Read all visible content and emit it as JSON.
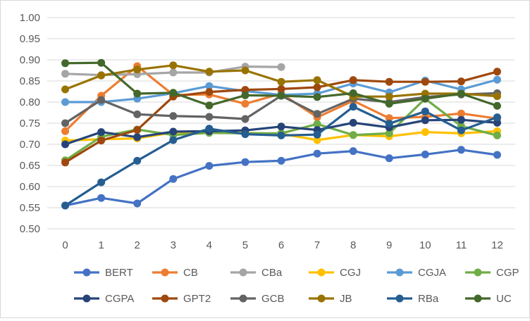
{
  "chart_data": {
    "type": "line",
    "title": "",
    "xlabel": "",
    "ylabel": "",
    "x": [
      0,
      1,
      2,
      3,
      4,
      5,
      6,
      7,
      8,
      9,
      10,
      11,
      12
    ],
    "ylim": [
      0.5,
      1.0
    ],
    "yticks": [
      "0.50",
      "0.55",
      "0.60",
      "0.65",
      "0.70",
      "0.75",
      "0.80",
      "0.85",
      "0.90",
      "0.95",
      "1.00"
    ],
    "xticks": [
      "0",
      "1",
      "2",
      "3",
      "4",
      "5",
      "6",
      "7",
      "8",
      "9",
      "10",
      "11",
      "12"
    ],
    "grid": true,
    "legend_position": "bottom",
    "series": [
      {
        "name": "BERT",
        "color": "#4472C4",
        "values": [
          0.555,
          0.573,
          0.56,
          0.618,
          0.649,
          0.658,
          0.661,
          0.678,
          0.684,
          0.667,
          0.676,
          0.687,
          0.675
        ]
      },
      {
        "name": "CB",
        "color": "#ED7D31",
        "values": [
          0.731,
          0.815,
          0.885,
          0.817,
          0.818,
          0.796,
          0.82,
          0.764,
          0.803,
          0.762,
          0.765,
          0.773,
          0.761
        ]
      },
      {
        "name": "CBa",
        "color": "#A5A5A5",
        "values": [
          0.867,
          0.864,
          0.866,
          0.87,
          0.87,
          0.884,
          0.883,
          null,
          null,
          null,
          null,
          null,
          null
        ]
      },
      {
        "name": "CGJ",
        "color": "#FFC000",
        "values": [
          0.709,
          0.712,
          0.714,
          0.728,
          0.728,
          0.727,
          0.725,
          0.71,
          0.722,
          0.719,
          0.729,
          0.726,
          0.731
        ]
      },
      {
        "name": "CGJA",
        "color": "#5B9BD5",
        "values": [
          0.8,
          0.8,
          0.808,
          0.821,
          0.838,
          0.826,
          0.817,
          0.82,
          0.844,
          0.823,
          0.851,
          0.83,
          0.853
        ]
      },
      {
        "name": "CGP",
        "color": "#70AD47",
        "values": [
          0.662,
          0.718,
          0.735,
          0.722,
          0.727,
          0.726,
          0.726,
          0.748,
          0.722,
          0.726,
          0.808,
          0.743,
          0.721
        ]
      },
      {
        "name": "CGPA",
        "color": "#264478",
        "values": [
          0.7,
          0.729,
          0.717,
          0.73,
          0.731,
          0.733,
          0.742,
          0.734,
          0.751,
          0.74,
          0.757,
          0.758,
          0.751
        ]
      },
      {
        "name": "GPT2",
        "color": "#9E480E",
        "values": [
          0.657,
          0.709,
          0.734,
          0.813,
          0.824,
          0.829,
          0.831,
          0.835,
          0.852,
          0.848,
          0.848,
          0.849,
          0.872
        ]
      },
      {
        "name": "GCB",
        "color": "#636363",
        "values": [
          0.75,
          0.805,
          0.771,
          0.767,
          0.765,
          0.76,
          0.815,
          0.772,
          0.808,
          0.8,
          0.812,
          0.818,
          0.821
        ]
      },
      {
        "name": "JB",
        "color": "#997300",
        "values": [
          0.83,
          0.863,
          0.877,
          0.887,
          0.872,
          0.875,
          0.848,
          0.852,
          0.813,
          0.813,
          0.82,
          0.82,
          0.814
        ]
      },
      {
        "name": "RBa",
        "color": "#255E91",
        "values": [
          0.555,
          0.61,
          0.661,
          0.71,
          0.737,
          0.724,
          0.721,
          0.723,
          0.789,
          0.749,
          0.778,
          0.733,
          0.764
        ]
      },
      {
        "name": "UC",
        "color": "#43682B",
        "values": [
          0.892,
          0.893,
          0.82,
          0.822,
          0.792,
          0.816,
          0.815,
          0.812,
          0.821,
          0.796,
          0.808,
          0.82,
          0.791
        ]
      }
    ]
  }
}
